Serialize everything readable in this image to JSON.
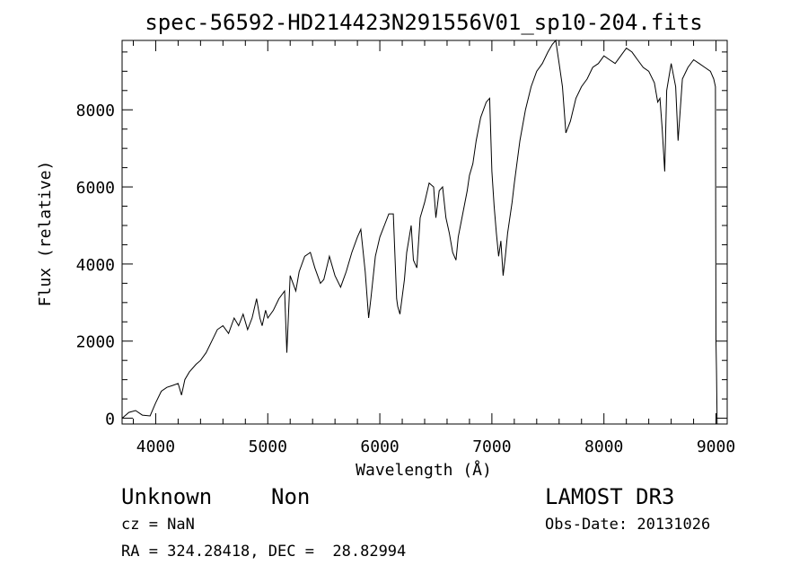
{
  "chart_data": {
    "type": "line",
    "title": "spec-56592-HD214423N291556V01_sp10-204.fits",
    "xlabel": "Wavelength (Å)",
    "ylabel": "Flux (relative)",
    "xlim": [
      3700,
      9100
    ],
    "ylim": [
      -150,
      9800
    ],
    "xticks": [
      4000,
      5000,
      6000,
      7000,
      8000,
      9000
    ],
    "yticks": [
      0,
      2000,
      4000,
      6000,
      8000
    ],
    "grid": false,
    "line_color": "#000000",
    "series": [
      {
        "x": [
          3700,
          3760,
          3820,
          3880,
          3950,
          4000,
          4050,
          4100,
          4150,
          4200,
          4230,
          4260,
          4300,
          4360,
          4400,
          4450,
          4500,
          4550,
          4600,
          4650,
          4700,
          4740,
          4780,
          4820,
          4860,
          4900,
          4930,
          4950,
          4980,
          5000,
          5050,
          5100,
          5150,
          5170,
          5200,
          5250,
          5280,
          5330,
          5380,
          5420,
          5470,
          5500,
          5550,
          5600,
          5650,
          5700,
          5750,
          5800,
          5830,
          5870,
          5900,
          5920,
          5960,
          6000,
          6040,
          6080,
          6120,
          6150,
          6160,
          6180,
          6220,
          6240,
          6280,
          6300,
          6330,
          6360,
          6400,
          6440,
          6480,
          6500,
          6530,
          6560,
          6590,
          6620,
          6650,
          6680,
          6700,
          6740,
          6780,
          6800,
          6830,
          6860,
          6900,
          6950,
          6980,
          7000,
          7020,
          7040,
          7060,
          7080,
          7100,
          7120,
          7140,
          7180,
          7200,
          7250,
          7300,
          7350,
          7400,
          7450,
          7500,
          7540,
          7570,
          7600,
          7630,
          7660,
          7700,
          7750,
          7800,
          7850,
          7900,
          7950,
          8000,
          8050,
          8100,
          8150,
          8200,
          8250,
          8300,
          8350,
          8400,
          8450,
          8480,
          8500,
          8520,
          8542,
          8560,
          8600,
          8640,
          8662,
          8700,
          8750,
          8800,
          8850,
          8900,
          8950,
          8980,
          8995,
          9000,
          9005,
          9010
        ],
        "y": [
          0,
          150,
          200,
          80,
          60,
          400,
          700,
          800,
          850,
          900,
          600,
          1000,
          1200,
          1400,
          1500,
          1700,
          2000,
          2300,
          2400,
          2200,
          2600,
          2400,
          2700,
          2300,
          2600,
          3100,
          2600,
          2400,
          2800,
          2600,
          2800,
          3100,
          3300,
          1700,
          3700,
          3300,
          3800,
          4200,
          4300,
          3900,
          3500,
          3600,
          4200,
          3700,
          3400,
          3800,
          4300,
          4700,
          4900,
          3800,
          2600,
          3100,
          4200,
          4700,
          5000,
          5300,
          5300,
          3100,
          2900,
          2700,
          3600,
          4300,
          5000,
          4100,
          3900,
          5200,
          5600,
          6100,
          6000,
          5200,
          5900,
          6000,
          5200,
          4800,
          4300,
          4100,
          4700,
          5300,
          5900,
          6300,
          6600,
          7200,
          7800,
          8200,
          8300,
          6400,
          5500,
          4800,
          4200,
          4600,
          3700,
          4200,
          4800,
          5600,
          6100,
          7200,
          8000,
          8600,
          9000,
          9200,
          9500,
          9700,
          9800,
          9200,
          8600,
          7400,
          7700,
          8300,
          8600,
          8800,
          9100,
          9200,
          9400,
          9300,
          9200,
          9400,
          9600,
          9500,
          9300,
          9100,
          9000,
          8700,
          8200,
          8300,
          7500,
          6400,
          8500,
          9200,
          8600,
          7200,
          8800,
          9100,
          9300,
          9200,
          9100,
          9000,
          8800,
          8600,
          2000,
          1200,
          -150
        ]
      }
    ]
  },
  "info": {
    "object_class": "Unknown",
    "object_subclass": "Non",
    "survey": "LAMOST DR3",
    "cz": "cz = NaN",
    "obs_date": "Obs-Date: 20131026",
    "coords": "RA = 324.28418, DEC =  28.82994"
  }
}
